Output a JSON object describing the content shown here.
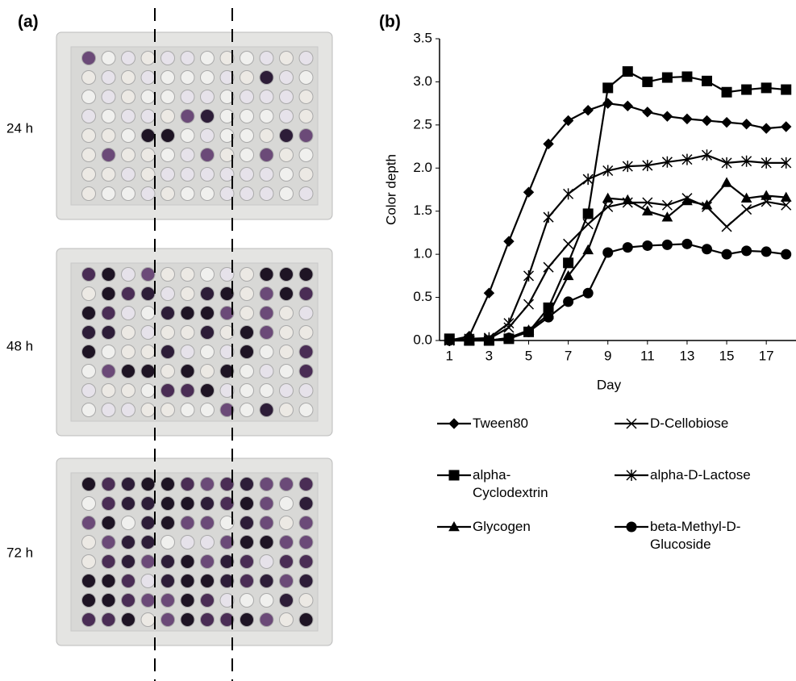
{
  "panel_a": {
    "label": "(a)",
    "times": [
      "24 h",
      "48 h",
      "72 h"
    ]
  },
  "chart_data": {
    "type": "line",
    "panel_label": "(b)",
    "xlabel": "Day",
    "ylabel": "Color depth",
    "x": [
      1,
      2,
      3,
      4,
      5,
      6,
      7,
      8,
      9,
      10,
      11,
      12,
      13,
      14,
      15,
      16,
      17,
      18
    ],
    "xlim": [
      0.5,
      18.5
    ],
    "xticks": [
      1,
      3,
      5,
      7,
      9,
      11,
      13,
      15,
      17
    ],
    "ylim": [
      0,
      3.5
    ],
    "yticks": [
      {
        "value": 0,
        "label": "0.0"
      },
      0.5,
      {
        "value": 1,
        "label": "1.0"
      },
      1.5,
      {
        "value": 2,
        "label": "2.0"
      },
      2.5,
      {
        "value": 3,
        "label": "3.0"
      },
      3.5
    ],
    "series": [
      {
        "name": "Tween80",
        "color": "#000000",
        "marker": "diamond",
        "values": [
          0.0,
          0.05,
          0.55,
          1.15,
          1.72,
          2.28,
          2.55,
          2.67,
          2.75,
          2.72,
          2.65,
          2.6,
          2.57,
          2.55,
          2.53,
          2.51,
          2.46,
          2.48
        ]
      },
      {
        "name": "alpha-Cyclodextrin",
        "color": "#000000",
        "marker": "square",
        "values": [
          0.02,
          0.0,
          0.0,
          0.02,
          0.1,
          0.38,
          0.9,
          1.47,
          2.93,
          3.12,
          3.0,
          3.05,
          3.06,
          3.01,
          2.88,
          2.91,
          2.93,
          2.91
        ]
      },
      {
        "name": "Glycogen",
        "color": "#000000",
        "marker": "triangle",
        "values": [
          0.0,
          0.0,
          0.0,
          0.03,
          0.12,
          0.3,
          0.75,
          1.05,
          1.65,
          1.63,
          1.5,
          1.43,
          1.62,
          1.57,
          1.83,
          1.65,
          1.68,
          1.66
        ]
      },
      {
        "name": "D-Cellobiose",
        "color": "#000000",
        "marker": "x",
        "values": [
          0.0,
          0.0,
          0.02,
          0.15,
          0.42,
          0.85,
          1.12,
          1.35,
          1.55,
          1.6,
          1.6,
          1.57,
          1.65,
          1.55,
          1.32,
          1.52,
          1.61,
          1.57
        ]
      },
      {
        "name": "alpha-D-Lactose",
        "color": "#000000",
        "marker": "asterisk",
        "values": [
          0.0,
          0.02,
          0.03,
          0.2,
          0.75,
          1.43,
          1.7,
          1.87,
          1.97,
          2.02,
          2.03,
          2.07,
          2.1,
          2.15,
          2.06,
          2.08,
          2.06,
          2.06
        ]
      },
      {
        "name": "beta-Methyl-D-Glucoside",
        "color": "#000000",
        "marker": "circle",
        "values": [
          0.0,
          0.0,
          0.0,
          0.03,
          0.1,
          0.27,
          0.45,
          0.55,
          1.02,
          1.08,
          1.1,
          1.11,
          1.12,
          1.06,
          1.0,
          1.04,
          1.03,
          1.0
        ]
      }
    ]
  }
}
